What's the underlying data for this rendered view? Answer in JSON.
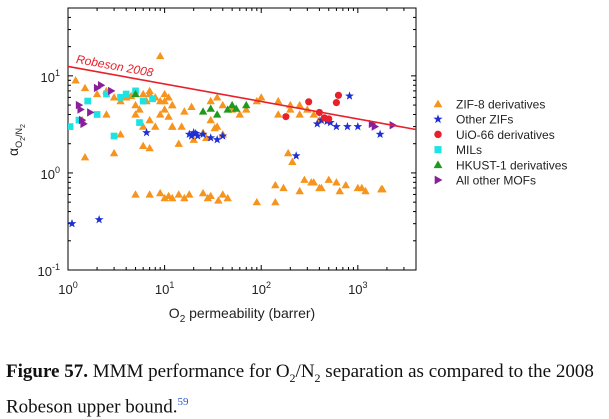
{
  "chart_data": {
    "type": "scatter",
    "title": "",
    "xlabel_parts": [
      "O",
      "2",
      " permeability (barrer)"
    ],
    "ylabel_parts": [
      "α",
      "O",
      "2",
      "/N",
      "2"
    ],
    "xscale": "log",
    "yscale": "log",
    "xlim": [
      1,
      4000
    ],
    "ylim": [
      0.1,
      50
    ],
    "x_ticks": [
      1,
      10,
      100,
      1000
    ],
    "x_tick_labels": [
      [
        "10",
        "0"
      ],
      [
        "10",
        "1"
      ],
      [
        "10",
        "2"
      ],
      [
        "10",
        "3"
      ]
    ],
    "y_ticks": [
      0.1,
      1,
      10
    ],
    "y_tick_labels": [
      [
        "10",
        "-1"
      ],
      [
        "10",
        "0"
      ],
      [
        "10",
        "1"
      ]
    ],
    "grid": false,
    "legend_position": "right",
    "robeson": {
      "label": "Robeson 2008",
      "color": "#e8202a",
      "x": [
        1,
        4000
      ],
      "y": [
        12.5,
        2.8
      ]
    },
    "series": [
      {
        "name": "ZIF-8 derivatives",
        "marker": "triangle-up",
        "color": "#f7941d",
        "x": [
          1.2,
          1.5,
          2.0,
          2.5,
          3.0,
          3.5,
          4.0,
          4.5,
          5.0,
          5.5,
          6.0,
          6.5,
          7.0,
          8.0,
          9.0,
          10.0,
          11.0,
          12.0,
          1.4,
          2.5,
          3.5,
          5.0,
          6.0,
          7.0,
          8.0,
          9.0,
          10.0,
          12.0,
          15.0,
          30.0,
          35.0,
          40.0,
          9.0,
          7.0,
          8.0,
          10.0,
          12.0,
          30.0,
          35.0,
          40.0,
          50.0,
          60.0,
          70.0,
          90.0,
          100.0,
          150.0,
          200.0,
          250.0,
          300.0,
          350.0,
          400.0,
          150.0,
          200.0,
          250.0,
          7.0,
          12.0,
          14.0,
          20.0,
          25.0,
          1.5,
          3.0,
          6.0,
          11.0,
          16.0,
          19.0,
          27.0,
          33.0,
          190.0,
          210.0,
          330.0,
          400.0,
          500.0,
          600.0,
          650.0,
          750.0,
          1000.0,
          1200.0,
          1800.0,
          140.0,
          170.0,
          250.0,
          280.0,
          350.0,
          420.0,
          1100.0,
          1750.0,
          5.0,
          7.0,
          9.0,
          10.0,
          11.0,
          12.0,
          14.0,
          16.0,
          18.0,
          25.0,
          28.0,
          30.0,
          36.0,
          40.0,
          45.0,
          90.0,
          140.0
        ],
        "y": [
          9.0,
          7.5,
          6.5,
          7.0,
          6.0,
          5.5,
          6.0,
          6.2,
          5.0,
          4.5,
          6.5,
          5.5,
          7.0,
          6.0,
          5.5,
          6.5,
          6.0,
          5.0,
          3.5,
          4.0,
          2.5,
          4.0,
          3.0,
          3.5,
          3.0,
          4.0,
          4.5,
          3.0,
          3.0,
          3.5,
          3.0,
          2.5,
          16.0,
          6.5,
          6.0,
          5.5,
          5.0,
          5.5,
          6.0,
          5.0,
          4.5,
          4.0,
          4.5,
          5.5,
          6.0,
          4.0,
          4.5,
          5.0,
          4.5,
          4.0,
          3.5,
          5.5,
          5.0,
          4.0,
          1.8,
          3.0,
          2.0,
          2.2,
          2.6,
          1.45,
          1.6,
          1.9,
          3.8,
          4.3,
          4.8,
          2.3,
          2.9,
          1.6,
          1.3,
          0.8,
          0.7,
          0.85,
          0.8,
          0.65,
          0.75,
          0.7,
          0.65,
          0.68,
          0.75,
          0.7,
          0.65,
          0.85,
          0.8,
          0.7,
          0.7,
          0.68,
          0.6,
          0.6,
          0.62,
          0.55,
          0.58,
          0.55,
          0.6,
          0.55,
          0.6,
          0.62,
          0.55,
          0.58,
          0.52,
          0.6,
          0.55,
          0.5,
          0.5
        ]
      },
      {
        "name": "Other ZIFs",
        "marker": "star",
        "color": "#1f2fd6",
        "x": [
          1.1,
          2.1,
          6.5,
          18.0,
          19.0,
          20.0,
          21.0,
          22.0,
          25.0,
          30.0,
          35.0,
          40.0,
          230.0,
          380.0,
          420.0,
          480.0,
          520.0,
          600.0,
          780.0,
          820.0,
          1000.0,
          1700.0
        ],
        "y": [
          0.3,
          0.33,
          2.6,
          2.5,
          2.4,
          2.6,
          2.55,
          2.4,
          2.5,
          2.3,
          2.2,
          2.4,
          1.5,
          3.2,
          3.5,
          3.4,
          3.3,
          3.0,
          3.0,
          6.2,
          3.0,
          2.5
        ]
      },
      {
        "name": "UiO-66 derivatives",
        "marker": "circle",
        "color": "#e8202a",
        "x": [
          180.0,
          310.0,
          400.0,
          450.0,
          500.0,
          600.0,
          630.0
        ],
        "y": [
          3.8,
          5.4,
          4.2,
          3.7,
          3.6,
          5.3,
          6.3
        ]
      },
      {
        "name": "MILs",
        "marker": "square",
        "color": "#1ee3e3",
        "x": [
          1.05,
          1.3,
          1.6,
          2.0,
          2.5,
          3.0,
          3.5,
          4.0,
          5.0,
          5.5,
          6.0,
          7.5
        ],
        "y": [
          3.0,
          3.5,
          5.5,
          4.0,
          6.5,
          2.4,
          6.0,
          6.5,
          7.0,
          3.3,
          5.5,
          5.8
        ]
      },
      {
        "name": "HKUST-1 derivatives",
        "marker": "triangle-up",
        "color": "#1f9a1f",
        "x": [
          5.0,
          25.0,
          30.0,
          35.0,
          45.0,
          50.0,
          55.0,
          70.0
        ],
        "y": [
          6.5,
          4.3,
          4.6,
          4.0,
          4.5,
          5.0,
          4.6,
          5.0
        ]
      },
      {
        "name": "All other MOFs",
        "marker": "triangle-right",
        "color": "#8a1f9a",
        "x": [
          1.3,
          1.35,
          1.4,
          1.45,
          1.7,
          2.0,
          2.2,
          2.8,
          1400.0,
          1500.0,
          2300.0
        ],
        "y": [
          5.0,
          4.5,
          3.5,
          3.2,
          4.2,
          7.5,
          8.0,
          7.0,
          3.2,
          3.0,
          3.1
        ]
      }
    ]
  },
  "caption": {
    "label": "Figure 57.",
    "text_parts": [
      " MMM performance for O",
      "2",
      "/N",
      "2",
      " separation as compared to the 2008 Robeson upper bound."
    ],
    "ref": "59"
  }
}
